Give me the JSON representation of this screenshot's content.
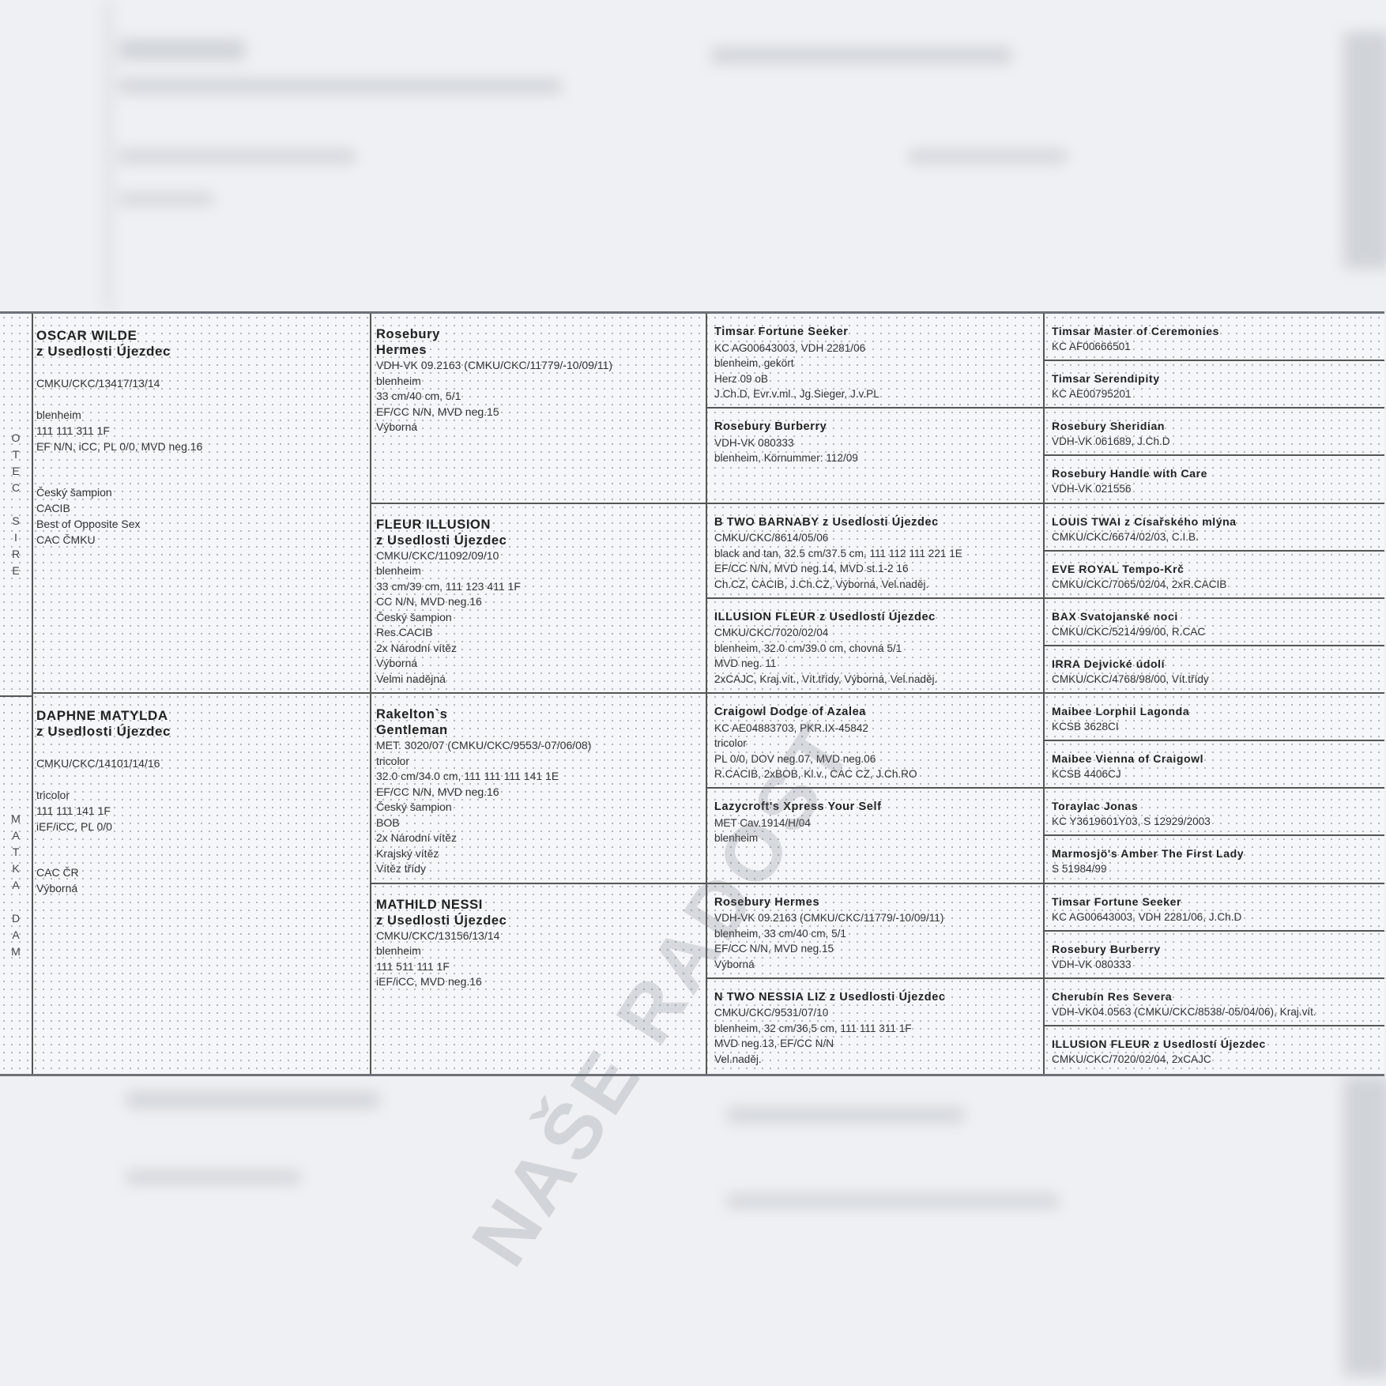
{
  "side_labels": {
    "sire": [
      "O",
      "T",
      "E",
      "C",
      "",
      "S",
      "I",
      "R",
      "E"
    ],
    "dam": [
      "M",
      "A",
      "T",
      "K",
      "A",
      "",
      "D",
      "A",
      "M"
    ]
  },
  "watermark": "NAŠE RADOST",
  "generation1": [
    {
      "name": [
        "OSCAR WILDE",
        "z Usedlosti Újezdec"
      ],
      "groups": [
        [
          "CMKU/CKC/13417/13/14"
        ],
        [
          "blenheim",
          "111 111 311 1F",
          "EF N/N, iCC, PL 0/0, MVD neg.16"
        ],
        [
          "Český šampion",
          "CACIB",
          "Best of Opposite Sex",
          "CAC ČMKU"
        ]
      ]
    },
    {
      "name": [
        "DAPHNE MATYLDA",
        "z Usedlosti Újezdec"
      ],
      "groups": [
        [
          "CMKU/CKC/14101/14/16"
        ],
        [
          "tricolor",
          "111 111 141 1F",
          "iEF/iCC, PL 0/0"
        ],
        [
          "CAC ČR",
          "Výborná"
        ]
      ]
    }
  ],
  "generation2": [
    {
      "name": [
        "Rosebury",
        "Hermes"
      ],
      "lines": [
        "VDH-VK 09.2163 (CMKU/CKC/11779/-10/09/11)",
        "blenheim",
        "33 cm/40 cm, 5/1",
        "EF/CC N/N, MVD neg.15",
        "Výborná"
      ]
    },
    {
      "name": [
        "FLEUR ILLUSION",
        "z Usedlosti Újezdec"
      ],
      "lines": [
        "CMKU/CKC/11092/09/10",
        "blenheim",
        "33 cm/39 cm, 111 123 411 1F",
        "CC N/N, MVD neg.16",
        "Český šampion",
        "Res.CACIB",
        "2x Národní vítěz",
        "Výborná",
        "Velmi nadějná"
      ]
    },
    {
      "name": [
        "Rakelton`s",
        "Gentleman"
      ],
      "lines": [
        "MET. 3020/07 (CMKU/CKC/9553/-07/06/08)",
        "tricolor",
        "32.0 cm/34.0 cm, 111 111 111 141 1E",
        "EF/CC N/N, MVD neg.16",
        "Český šampion",
        "BOB",
        "2x Národní vítěz",
        "Krajský vítěz",
        "Vítěz třídy"
      ]
    },
    {
      "name": [
        "MATHILD NESSI",
        "z Usedlosti Újezdec"
      ],
      "lines": [
        "CMKU/CKC/13156/13/14",
        "blenheim",
        "111 511 111 1F",
        "iEF/iCC, MVD neg.16"
      ]
    }
  ],
  "generation3": [
    {
      "name": [
        "Timsar Fortune Seeker"
      ],
      "lines": [
        "KC AG00643003, VDH 2281/06",
        "blenheim, gekört",
        "Herz 09 oB",
        "J.Ch.D, Evr.v.ml., Jg.Sieger, J.v.PL"
      ]
    },
    {
      "name": [
        "Rosebury Burberry"
      ],
      "lines": [
        "VDH-VK 080333",
        "blenheim, Körnummer: 112/09"
      ]
    },
    {
      "name": [
        "B TWO BARNABY z Usedlosti Újezdec"
      ],
      "lines": [
        "CMKU/CKC/8614/05/06",
        "black and tan, 32.5 cm/37.5 cm, 111 112 111 221 1E",
        "EF/CC N/N, MVD neg.14, MVD st.1-2 16",
        "Ch.CZ, CACIB, J.Ch.CZ, Výborná, Vel.naděj."
      ]
    },
    {
      "name": [
        "ILLUSION FLEUR z Usedlostí Újezdec"
      ],
      "lines": [
        "CMKU/CKC/7020/02/04",
        "blenheim, 32.0 cm/39.0 cm, chovná 5/1",
        "MVD neg. 11",
        "2xCAJC, Kraj.vít., Vít.třídy, Výborná, Vel.naděj."
      ]
    },
    {
      "name": [
        "Craigowl Dodge of Azalea"
      ],
      "lines": [
        "KC AE04883703, PKR.IX-45842",
        "tricolor",
        "PL 0/0, DOV neg.07, MVD neg.06",
        "R.CACIB, 2xBOB, Kl.v., CAC CZ, J.Ch.RO"
      ]
    },
    {
      "name": [
        "Lazycroft's Xpress Your Self"
      ],
      "lines": [
        "MET Cav.1914/H/04",
        "blenheim"
      ]
    },
    {
      "name": [
        "Rosebury Hermes"
      ],
      "lines": [
        "VDH-VK 09.2163 (CMKU/CKC/11779/-10/09/11)",
        "blenheim, 33 cm/40 cm, 5/1",
        "EF/CC N/N, MVD neg.15",
        "Výborná"
      ]
    },
    {
      "name": [
        "N TWO NESSIA LIZ z Usedlosti Újezdec"
      ],
      "lines": [
        "CMKU/CKC/9531/07/10",
        "blenheim, 32 cm/36,5 cm, 111 111 311 1F",
        "MVD neg.13, EF/CC N/N",
        "Vel.naděj."
      ]
    }
  ],
  "generation4": [
    {
      "name": [
        "Timsar Master of Ceremonies"
      ],
      "lines": [
        "KC AF00666501"
      ]
    },
    {
      "name": [
        "Timsar Serendipity"
      ],
      "lines": [
        "KC AE00795201"
      ]
    },
    {
      "name": [
        "Rosebury Sheridian"
      ],
      "lines": [
        "VDH-VK 061689, J.Ch.D"
      ]
    },
    {
      "name": [
        "Rosebury Handle with Care"
      ],
      "lines": [
        "VDH-VK 021556"
      ]
    },
    {
      "name": [
        "LOUIS TWAI z Císařského mlýna"
      ],
      "lines": [
        "CMKU/CKC/6674/02/03, C.I.B."
      ]
    },
    {
      "name": [
        "EVE ROYAL Tempo-Krč"
      ],
      "lines": [
        "CMKU/CKC/7065/02/04, 2xR.CACIB"
      ]
    },
    {
      "name": [
        "BAX Svatojanské noci"
      ],
      "lines": [
        "CMKU/CKC/5214/99/00, R.CAC"
      ]
    },
    {
      "name": [
        "IRRA Dejvické údolí"
      ],
      "lines": [
        "CMKU/CKC/4768/98/00, Vít.třídy"
      ]
    },
    {
      "name": [
        "Maibee Lorphil Lagonda"
      ],
      "lines": [
        "KCSB 3628CI"
      ]
    },
    {
      "name": [
        "Maibee Vienna of Craigowl"
      ],
      "lines": [
        "KCSB 4406CJ"
      ]
    },
    {
      "name": [
        "Toraylac Jonas"
      ],
      "lines": [
        "KC Y3619601Y03, S 12929/2003"
      ]
    },
    {
      "name": [
        "Marmosjö's Amber The First Lady"
      ],
      "lines": [
        "S 51984/99"
      ]
    },
    {
      "name": [
        "Timsar Fortune Seeker"
      ],
      "lines": [
        "KC AG00643003, VDH 2281/06, J.Ch.D"
      ]
    },
    {
      "name": [
        "Rosebury Burberry"
      ],
      "lines": [
        "VDH-VK 080333"
      ]
    },
    {
      "name": [
        "Cherubín Res Severa"
      ],
      "lines": [
        "VDH-VK04.0563 (CMKU/CKC/8538/-05/04/06), Kraj.vít."
      ]
    },
    {
      "name": [
        "ILLUSION FLEUR z Usedlostí Újezdec"
      ],
      "lines": [
        "CMKU/CKC/7020/02/04, 2xCAJC"
      ]
    }
  ]
}
